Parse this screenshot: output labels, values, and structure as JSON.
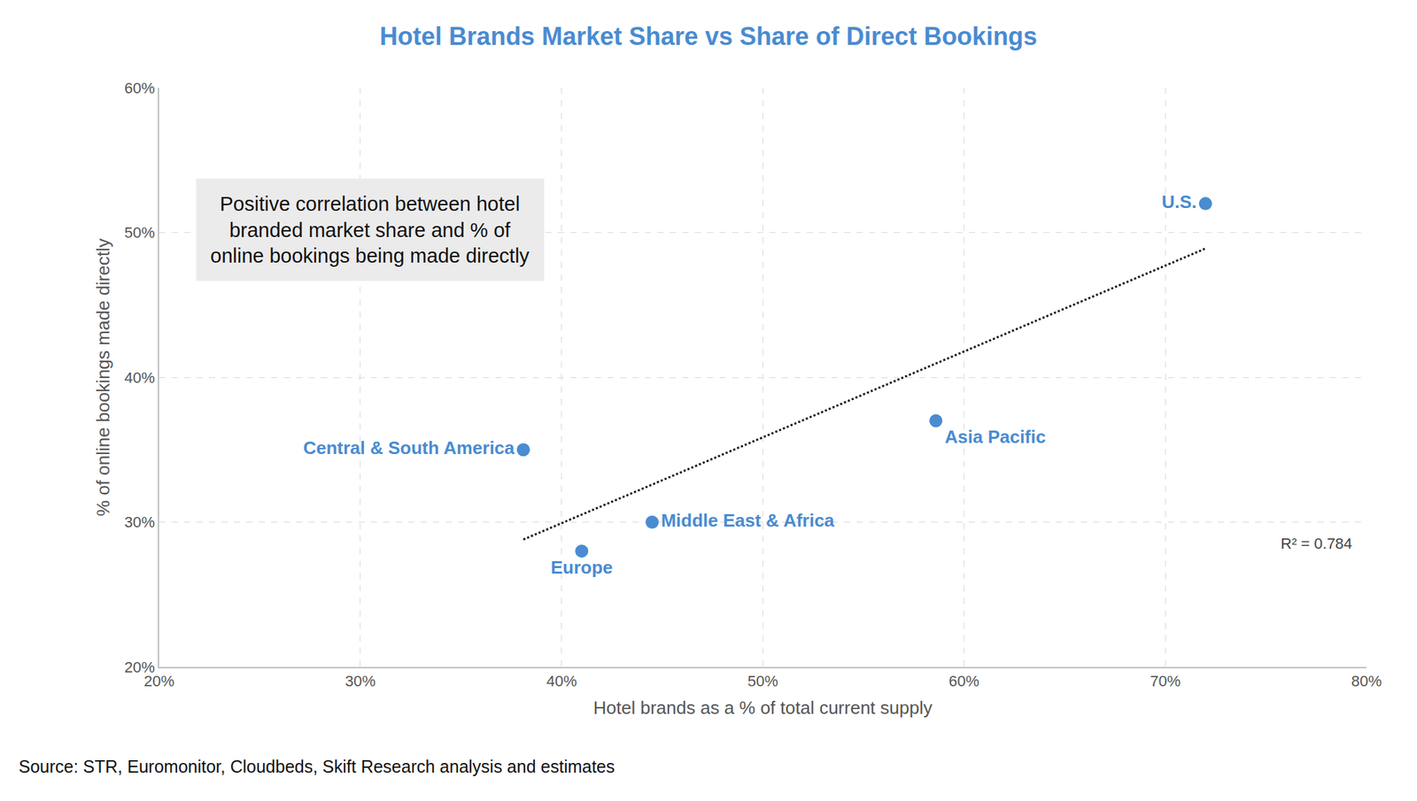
{
  "chart_data": {
    "type": "scatter",
    "title": "Hotel Brands Market Share vs Share of Direct Bookings",
    "x_label": "Hotel brands as a % of total current supply",
    "y_label": "% of online bookings made directly",
    "labels": [
      "Central & South America",
      "Europe",
      "Middle East & Africa",
      "Asia Pacific",
      "U.S."
    ],
    "x": [
      38.1,
      41,
      44.5,
      58.6,
      72
    ],
    "y": [
      35,
      28,
      30,
      37,
      52
    ],
    "color": "#4a8bd1",
    "marker": "circle",
    "trendline": {
      "x": [
        38.1,
        72
      ],
      "y": [
        28.8,
        48.9
      ],
      "line_style": "dotted",
      "color": "#111111"
    },
    "annotations": [
      {
        "text": "Positive correlation between hotel\nbranded market share and % of\nonline bookings being made directly",
        "x": 30.5,
        "y": 50.2
      },
      {
        "text": "R² = 0.784",
        "x": 77.5,
        "y": 28.5
      }
    ],
    "source": "Source: STR, Euromonitor, Cloudbeds, Skift Research analysis and estimates",
    "xlim": [
      20,
      80
    ],
    "xticks": [
      {
        "value": 20,
        "label": "20%"
      },
      {
        "value": 30,
        "label": "30%"
      },
      {
        "value": 40,
        "label": "40%"
      },
      {
        "value": 50,
        "label": "50%"
      },
      {
        "value": 60,
        "label": "60%"
      },
      {
        "value": 70,
        "label": "70%"
      },
      {
        "value": 80,
        "label": "80%"
      }
    ],
    "ylim": [
      20,
      60
    ],
    "yticks": [
      {
        "value": 20,
        "label": "20%"
      },
      {
        "value": 30,
        "label": "30%"
      },
      {
        "value": 40,
        "label": "40%"
      },
      {
        "value": 50,
        "label": "50%"
      },
      {
        "value": 60,
        "label": "60%"
      }
    ],
    "grid": true
  }
}
